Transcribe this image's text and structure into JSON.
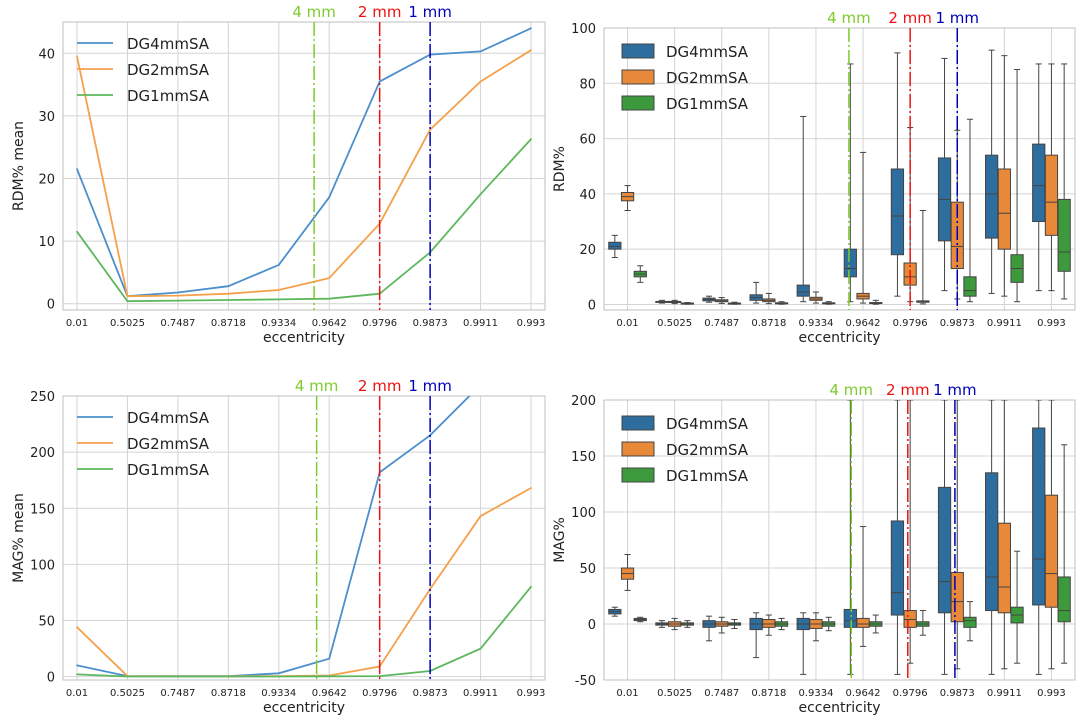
{
  "chart_data": [
    {
      "id": "p1",
      "type": "line",
      "ylabel": "RDM% mean",
      "xlabel": "eccentricity",
      "categories": [
        "0.01",
        "0.5025",
        "0.7487",
        "0.8718",
        "0.9334",
        "0.9642",
        "0.9796",
        "0.9873",
        "0.9911",
        "0.993"
      ],
      "ylim": [
        -1,
        45
      ],
      "yticks": [
        0,
        10,
        20,
        30,
        40
      ],
      "grid": true,
      "legend": "top-left",
      "series": [
        {
          "name": "DG4mmSA",
          "color": "#4c8fcc",
          "values": [
            21.5,
            1.2,
            1.8,
            2.8,
            6.2,
            17,
            35.5,
            39.8,
            40.3,
            44
          ]
        },
        {
          "name": "DG2mmSA",
          "color": "#f5a04a",
          "values": [
            39.5,
            1.2,
            1.3,
            1.6,
            2.2,
            4.1,
            12.8,
            27.8,
            35.5,
            40.5
          ]
        },
        {
          "name": "DG1mmSA",
          "color": "#5db85d",
          "values": [
            11.5,
            0.4,
            0.5,
            0.6,
            0.7,
            0.8,
            1.6,
            8.2,
            17.5,
            26.3
          ]
        }
      ],
      "vlines": [
        {
          "label": "4 mm",
          "color": "#7ccc2a",
          "position": 4.7
        },
        {
          "label": "2 mm",
          "color": "#ee1111",
          "position": 6.0
        },
        {
          "label": "1 mm",
          "color": "#0000bb",
          "position": 7.0
        }
      ]
    },
    {
      "id": "p2",
      "type": "box",
      "ylabel": "RDM%",
      "xlabel": "eccentricity",
      "categories": [
        "0.01",
        "0.5025",
        "0.7487",
        "0.8718",
        "0.9334",
        "0.9642",
        "0.9796",
        "0.9873",
        "0.9911",
        "0.993"
      ],
      "ylim": [
        -2,
        100
      ],
      "yticks": [
        0,
        20,
        40,
        60,
        80,
        100
      ],
      "grid": true,
      "legend": "top-left",
      "series": [
        {
          "name": "DG4mmSA",
          "color": "#2e6e9e",
          "boxes": [
            [
              17,
              20,
              21,
              22.5,
              25
            ],
            [
              0.5,
              0.9,
              1,
              1.1,
              1.5
            ],
            [
              0.8,
              1.3,
              1.8,
              2.3,
              3
            ],
            [
              0.5,
              1.5,
              2.5,
              3.5,
              8
            ],
            [
              1,
              3,
              4.5,
              7,
              68
            ],
            [
              1,
              10,
              13,
              20,
              87
            ],
            [
              3,
              18,
              32,
              49,
              91
            ],
            [
              5,
              23,
              38,
              53,
              89
            ],
            [
              4,
              24,
              40,
              54,
              92
            ],
            [
              5,
              30,
              43,
              58,
              87
            ]
          ]
        },
        {
          "name": "DG2mmSA",
          "color": "#e8893a",
          "boxes": [
            [
              34,
              37.5,
              39,
              40.5,
              43
            ],
            [
              0.3,
              0.7,
              0.9,
              1.1,
              1.5
            ],
            [
              0.4,
              1,
              1.3,
              1.7,
              2.5
            ],
            [
              0.3,
              1,
              1.5,
              2,
              4
            ],
            [
              0.5,
              1.5,
              2,
              2.6,
              4.5
            ],
            [
              0.5,
              2,
              3,
              4,
              55
            ],
            [
              1,
              7,
              10,
              15,
              64
            ],
            [
              2,
              13,
              21,
              37,
              63
            ],
            [
              3,
              20,
              33,
              49,
              90
            ],
            [
              5,
              25,
              37,
              54,
              87
            ]
          ]
        },
        {
          "name": "DG1mmSA",
          "color": "#3c9a3c",
          "boxes": [
            [
              8,
              10,
              11,
              12,
              14
            ],
            [
              0.1,
              0.3,
              0.4,
              0.5,
              0.7
            ],
            [
              0.1,
              0.3,
              0.4,
              0.5,
              0.8
            ],
            [
              0.1,
              0.3,
              0.4,
              0.6,
              1
            ],
            [
              0.1,
              0.4,
              0.5,
              0.6,
              1
            ],
            [
              0.1,
              0.4,
              0.5,
              0.7,
              1.5
            ],
            [
              0.2,
              0.8,
              1,
              1.3,
              34
            ],
            [
              1,
              3,
              5,
              10,
              67
            ],
            [
              1,
              8,
              13,
              18,
              85
            ],
            [
              2,
              12,
              19,
              38,
              87
            ]
          ]
        }
      ],
      "vlines": [
        {
          "label": "4 mm",
          "color": "#7ccc2a",
          "position": 4.7
        },
        {
          "label": "2 mm",
          "color": "#ee1111",
          "position": 6.0
        },
        {
          "label": "1 mm",
          "color": "#0000bb",
          "position": 7.0
        }
      ]
    },
    {
      "id": "p3",
      "type": "line",
      "ylabel": "MAG% mean",
      "xlabel": "eccentricity",
      "categories": [
        "0.01",
        "0.5025",
        "0.7487",
        "0.8718",
        "0.9334",
        "0.9642",
        "0.9796",
        "0.9873",
        "0.9911",
        "0.993"
      ],
      "ylim": [
        -3,
        250
      ],
      "yticks": [
        0,
        50,
        100,
        150,
        200,
        250
      ],
      "grid": true,
      "legend": "top-left",
      "series": [
        {
          "name": "DG4mmSA",
          "color": "#4c8fcc",
          "values": [
            10,
            0.5,
            0.5,
            0.5,
            3,
            16,
            182,
            215,
            260,
            null
          ]
        },
        {
          "name": "DG2mmSA",
          "color": "#f5a04a",
          "values": [
            44,
            0.5,
            0.3,
            0.3,
            0.5,
            1,
            9,
            78,
            143,
            168
          ]
        },
        {
          "name": "DG1mmSA",
          "color": "#5db85d",
          "values": [
            2,
            0.1,
            0.1,
            0.1,
            0.1,
            0.3,
            0.5,
            5,
            25,
            80
          ]
        }
      ],
      "vlines": [
        {
          "label": "4 mm",
          "color": "#7ccc2a",
          "position": 4.75
        },
        {
          "label": "2 mm",
          "color": "#ee1111",
          "position": 6.0
        },
        {
          "label": "1 mm",
          "color": "#0000bb",
          "position": 7.0
        }
      ]
    },
    {
      "id": "p4",
      "type": "box",
      "ylabel": "MAG%",
      "xlabel": "eccentricity",
      "categories": [
        "0.01",
        "0.5025",
        "0.7487",
        "0.8718",
        "0.9334",
        "0.9642",
        "0.9796",
        "0.9873",
        "0.9911",
        "0.993"
      ],
      "ylim": [
        -50,
        200
      ],
      "yticks": [
        -50,
        0,
        50,
        100,
        150,
        200
      ],
      "grid": true,
      "legend": "top-left",
      "series": [
        {
          "name": "DG4mmSA",
          "color": "#2e6e9e",
          "boxes": [
            [
              7,
              9,
              11,
              13,
              15
            ],
            [
              -3,
              -1,
              0,
              1,
              3
            ],
            [
              -15,
              -3,
              0,
              3,
              7
            ],
            [
              -30,
              -5,
              0,
              5,
              10
            ],
            [
              -45,
              -5,
              0,
              5,
              10
            ],
            [
              -45,
              -3,
              3,
              13,
              200
            ],
            [
              -45,
              8,
              28,
              92,
              200
            ],
            [
              -45,
              10,
              38,
              122,
              200
            ],
            [
              -45,
              12,
              42,
              135,
              200
            ],
            [
              -45,
              17,
              58,
              175,
              200
            ]
          ]
        },
        {
          "name": "DG2mmSA",
          "color": "#e8893a",
          "boxes": [
            [
              30,
              40,
              45,
              50,
              62
            ],
            [
              -5,
              -2,
              0,
              2,
              5
            ],
            [
              -8,
              -2,
              0,
              2,
              6
            ],
            [
              -10,
              -3,
              0,
              4,
              8
            ],
            [
              -15,
              -4,
              0,
              4,
              10
            ],
            [
              -20,
              -3,
              0,
              5,
              87
            ],
            [
              -35,
              -3,
              4,
              12,
              200
            ],
            [
              -40,
              2,
              20,
              46,
              200
            ],
            [
              -40,
              10,
              33,
              90,
              200
            ],
            [
              -40,
              15,
              45,
              115,
              200
            ]
          ]
        },
        {
          "name": "DG1mmSA",
          "color": "#3c9a3c",
          "boxes": [
            [
              2,
              3,
              4,
              5,
              6
            ],
            [
              -3,
              -1,
              0,
              1,
              3
            ],
            [
              -4,
              -1,
              0,
              1,
              4
            ],
            [
              -5,
              -2,
              0,
              2,
              5
            ],
            [
              -6,
              -2,
              0,
              2,
              6
            ],
            [
              -8,
              -2,
              0,
              2,
              8
            ],
            [
              -10,
              -2,
              0,
              2,
              12
            ],
            [
              -15,
              -3,
              3,
              6,
              20
            ],
            [
              -35,
              1,
              8,
              15,
              65
            ],
            [
              -35,
              2,
              12,
              42,
              160
            ]
          ]
        }
      ],
      "vlines": [
        {
          "label": "4 mm",
          "color": "#7ccc2a",
          "position": 4.75
        },
        {
          "label": "2 mm",
          "color": "#ee1111",
          "position": 5.95
        },
        {
          "label": "1 mm",
          "color": "#0000bb",
          "position": 6.95
        }
      ]
    }
  ]
}
